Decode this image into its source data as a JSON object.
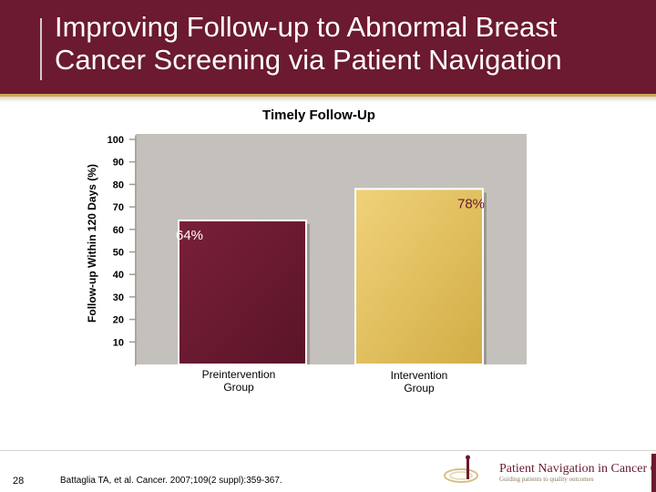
{
  "slide": {
    "title_line1": "Improving Follow-up to Abnormal Breast",
    "title_line2": "Cancer Screening via Patient Navigation",
    "page_number": "28",
    "citation": "Battaglia TA, et al. Cancer. 2007;109(2 suppl):359-367.",
    "logo": {
      "name": "Patient Navigation in Cancer Care",
      "tagline": "Guiding patients to quality outcomes"
    },
    "colors": {
      "header": "#6b1a30",
      "accent": "#c9a84c"
    }
  },
  "chart_data": {
    "type": "bar",
    "title": "Timely Follow-Up",
    "ylabel": "Follow-up Within 120 Days (%)",
    "xlabel": "",
    "categories": [
      "Preintervention Group",
      "Intervention Group"
    ],
    "category_lines": [
      [
        "Preintervention",
        "Group"
      ],
      [
        "Intervention",
        "Group"
      ]
    ],
    "values": [
      64,
      78
    ],
    "value_labels": [
      "64%",
      "78%"
    ],
    "bar_colors": [
      "#6b1a30",
      "#e3c35c"
    ],
    "yticks": [
      100,
      90,
      80,
      70,
      60,
      50,
      40,
      30,
      20,
      10
    ],
    "ylim": [
      0,
      100
    ],
    "grid": false,
    "legend": "none"
  }
}
